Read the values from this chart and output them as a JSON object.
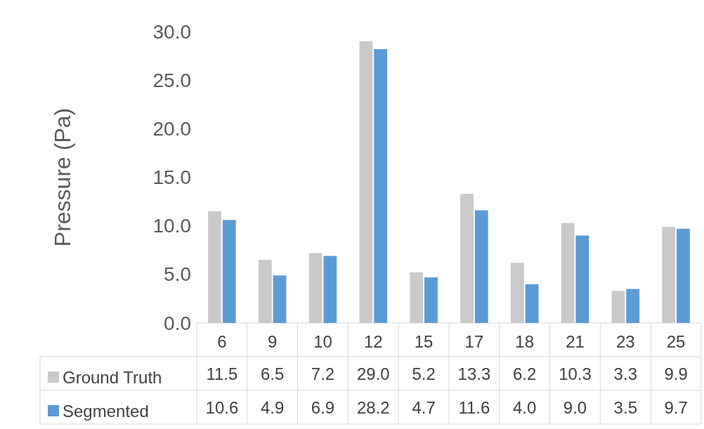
{
  "chart_data": {
    "type": "bar",
    "ylabel": "Pressure (Pa)",
    "categories": [
      "6",
      "9",
      "10",
      "12",
      "15",
      "17",
      "18",
      "21",
      "23",
      "25"
    ],
    "series": [
      {
        "name": "Ground Truth",
        "color": "#c9c9c9",
        "values": [
          11.5,
          6.5,
          7.2,
          29.0,
          5.2,
          13.3,
          6.2,
          10.3,
          3.3,
          9.9
        ],
        "value_labels": [
          "11.5",
          "6.5",
          "7.2",
          "29.0",
          "5.2",
          "13.3",
          "6.2",
          "10.3",
          "3.3",
          "9.9"
        ]
      },
      {
        "name": "Segmented",
        "color": "#5b9bd5",
        "values": [
          10.6,
          4.9,
          6.9,
          28.2,
          4.7,
          11.6,
          4.0,
          9.0,
          3.5,
          9.7
        ],
        "value_labels": [
          "10.6",
          "4.9",
          "6.9",
          "28.2",
          "4.7",
          "11.6",
          "4.0",
          "9.0",
          "3.5",
          "9.7"
        ]
      }
    ],
    "ylim": [
      0,
      30
    ],
    "yticks": [
      {
        "value": 0,
        "label": "0.0"
      },
      {
        "value": 5,
        "label": "5.0"
      },
      {
        "value": 10,
        "label": "10.0"
      },
      {
        "value": 15,
        "label": "15.0"
      },
      {
        "value": 20,
        "label": "20.0"
      },
      {
        "value": 25,
        "label": "25.0"
      },
      {
        "value": 30,
        "label": "30.0"
      }
    ],
    "grid": false,
    "legend": "bottom left"
  }
}
